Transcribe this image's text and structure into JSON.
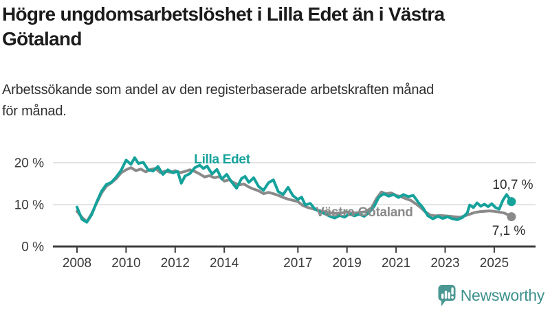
{
  "header": {
    "title_line1": "Högre ungdomsarbetslöshet i Lilla Edet än i Västra",
    "title_line2": "Götaland",
    "subtitle_line1": "Arbetssökande som andel av den registerbaserade arbetskraften månad",
    "subtitle_line2": "för månad."
  },
  "footer": {
    "brand": "Newsworthy"
  },
  "colors": {
    "teal": "#14a29b",
    "gray": "#8a8a8a",
    "logo_teal": "#4a9793",
    "grid": "#dcdcdc",
    "axis": "#3d3d3d",
    "axis_text": "#3a3a3a",
    "annotation_text": "#2a2a2a"
  },
  "chart_data": {
    "type": "line",
    "unit": "%",
    "title": "Arbetssökande som andel av den registerbaserade arbetskraften månad för månad",
    "x_axis": {
      "ticks": [
        "2008",
        "2010",
        "2012",
        "2014",
        "2017",
        "2019",
        "2021",
        "2023",
        "2025"
      ],
      "tick_values": [
        2008,
        2010,
        2012,
        2014,
        2017,
        2019,
        2021,
        2023,
        2025
      ],
      "range": [
        2008,
        2026
      ]
    },
    "y_axis": {
      "ticks": [
        {
          "value": 0,
          "label": "0 %"
        },
        {
          "value": 10,
          "label": "10 %"
        },
        {
          "value": 20,
          "label": "20 %"
        }
      ],
      "range": [
        0,
        23
      ],
      "grid": true
    },
    "series": [
      {
        "name": "Västra Götaland",
        "color": "#8a8a8a",
        "end_label": "7,1 %",
        "end_value": 7.1,
        "points": [
          [
            2008.0,
            8.4
          ],
          [
            2008.2,
            7.0
          ],
          [
            2008.4,
            5.9
          ],
          [
            2008.6,
            7.9
          ],
          [
            2008.8,
            10.4
          ],
          [
            2009.0,
            12.8
          ],
          [
            2009.2,
            14.4
          ],
          [
            2009.4,
            15.2
          ],
          [
            2009.6,
            16.2
          ],
          [
            2009.8,
            17.6
          ],
          [
            2010.0,
            18.3
          ],
          [
            2010.2,
            18.8
          ],
          [
            2010.4,
            18.1
          ],
          [
            2010.6,
            18.5
          ],
          [
            2010.8,
            17.8
          ],
          [
            2011.0,
            18.4
          ],
          [
            2011.2,
            18.6
          ],
          [
            2011.4,
            17.6
          ],
          [
            2011.6,
            18.0
          ],
          [
            2011.8,
            17.7
          ],
          [
            2012.0,
            18.1
          ],
          [
            2012.2,
            17.6
          ],
          [
            2012.4,
            17.9
          ],
          [
            2012.6,
            18.3
          ],
          [
            2012.8,
            17.9
          ],
          [
            2013.0,
            17.3
          ],
          [
            2013.2,
            16.6
          ],
          [
            2013.4,
            16.9
          ],
          [
            2013.6,
            16.4
          ],
          [
            2013.8,
            16.7
          ],
          [
            2014.0,
            15.6
          ],
          [
            2014.2,
            15.9
          ],
          [
            2014.4,
            15.2
          ],
          [
            2014.6,
            14.7
          ],
          [
            2014.8,
            14.9
          ],
          [
            2015.0,
            14.2
          ],
          [
            2015.2,
            13.7
          ],
          [
            2015.4,
            13.3
          ],
          [
            2015.6,
            12.6
          ],
          [
            2015.8,
            12.9
          ],
          [
            2016.0,
            12.6
          ],
          [
            2016.2,
            12.2
          ],
          [
            2016.4,
            11.7
          ],
          [
            2016.6,
            11.3
          ],
          [
            2016.8,
            11.0
          ],
          [
            2017.0,
            10.7
          ],
          [
            2017.2,
            9.8
          ],
          [
            2017.4,
            9.3
          ],
          [
            2017.6,
            9.0
          ],
          [
            2017.8,
            8.7
          ],
          [
            2018.0,
            8.4
          ],
          [
            2018.25,
            8.1
          ],
          [
            2018.5,
            7.9
          ],
          [
            2018.75,
            8.0
          ],
          [
            2019.0,
            8.2
          ],
          [
            2019.25,
            8.0
          ],
          [
            2019.5,
            8.1
          ],
          [
            2019.75,
            8.3
          ],
          [
            2020.0,
            9.2
          ],
          [
            2020.2,
            11.4
          ],
          [
            2020.4,
            13.0
          ],
          [
            2020.6,
            12.6
          ],
          [
            2020.8,
            12.8
          ],
          [
            2021.0,
            12.2
          ],
          [
            2021.2,
            11.9
          ],
          [
            2021.4,
            11.4
          ],
          [
            2021.6,
            11.0
          ],
          [
            2021.8,
            10.2
          ],
          [
            2022.0,
            9.3
          ],
          [
            2022.2,
            8.2
          ],
          [
            2022.4,
            7.5
          ],
          [
            2022.6,
            7.3
          ],
          [
            2022.8,
            7.4
          ],
          [
            2023.0,
            7.3
          ],
          [
            2023.2,
            7.2
          ],
          [
            2023.4,
            7.1
          ],
          [
            2023.6,
            7.0
          ],
          [
            2023.8,
            7.3
          ],
          [
            2024.0,
            7.7
          ],
          [
            2024.2,
            8.1
          ],
          [
            2024.4,
            8.3
          ],
          [
            2024.6,
            8.4
          ],
          [
            2024.8,
            8.5
          ],
          [
            2025.0,
            8.4
          ],
          [
            2025.2,
            8.2
          ],
          [
            2025.4,
            8.0
          ],
          [
            2025.55,
            7.6
          ],
          [
            2025.7,
            7.1
          ]
        ]
      },
      {
        "name": "Lilla Edet",
        "color": "#14a29b",
        "end_label": "10,7 %",
        "end_value": 10.7,
        "points": [
          [
            2008.0,
            9.4
          ],
          [
            2008.2,
            6.5
          ],
          [
            2008.4,
            5.8
          ],
          [
            2008.6,
            7.6
          ],
          [
            2008.8,
            10.6
          ],
          [
            2009.0,
            13.2
          ],
          [
            2009.2,
            14.8
          ],
          [
            2009.4,
            15.3
          ],
          [
            2009.6,
            16.6
          ],
          [
            2009.8,
            18.2
          ],
          [
            2010.0,
            20.6
          ],
          [
            2010.2,
            19.6
          ],
          [
            2010.35,
            21.2
          ],
          [
            2010.5,
            19.8
          ],
          [
            2010.7,
            20.1
          ],
          [
            2010.9,
            18.3
          ],
          [
            2011.1,
            18.0
          ],
          [
            2011.3,
            19.1
          ],
          [
            2011.5,
            17.2
          ],
          [
            2011.7,
            18.3
          ],
          [
            2011.9,
            17.6
          ],
          [
            2012.1,
            17.9
          ],
          [
            2012.25,
            15.1
          ],
          [
            2012.4,
            16.8
          ],
          [
            2012.6,
            17.4
          ],
          [
            2012.8,
            18.8
          ],
          [
            2013.0,
            19.4
          ],
          [
            2013.15,
            18.6
          ],
          [
            2013.3,
            19.2
          ],
          [
            2013.5,
            17.3
          ],
          [
            2013.7,
            18.4
          ],
          [
            2013.9,
            16.1
          ],
          [
            2014.1,
            17.2
          ],
          [
            2014.3,
            15.4
          ],
          [
            2014.5,
            13.9
          ],
          [
            2014.7,
            16.2
          ],
          [
            2014.85,
            16.7
          ],
          [
            2015.0,
            15.3
          ],
          [
            2015.2,
            16.4
          ],
          [
            2015.4,
            14.3
          ],
          [
            2015.6,
            13.4
          ],
          [
            2015.8,
            15.2
          ],
          [
            2016.0,
            15.9
          ],
          [
            2016.2,
            13.1
          ],
          [
            2016.4,
            12.4
          ],
          [
            2016.6,
            14.1
          ],
          [
            2016.8,
            12.1
          ],
          [
            2017.0,
            11.2
          ],
          [
            2017.15,
            11.8
          ],
          [
            2017.3,
            9.9
          ],
          [
            2017.5,
            10.3
          ],
          [
            2017.7,
            8.9
          ],
          [
            2017.9,
            8.3
          ],
          [
            2018.1,
            7.8
          ],
          [
            2018.3,
            7.2
          ],
          [
            2018.5,
            6.8
          ],
          [
            2018.7,
            7.4
          ],
          [
            2018.9,
            7.0
          ],
          [
            2019.1,
            7.8
          ],
          [
            2019.3,
            7.3
          ],
          [
            2019.5,
            7.7
          ],
          [
            2019.7,
            7.2
          ],
          [
            2019.9,
            8.1
          ],
          [
            2020.1,
            9.5
          ],
          [
            2020.3,
            11.8
          ],
          [
            2020.5,
            12.6
          ],
          [
            2020.7,
            12.0
          ],
          [
            2020.9,
            12.4
          ],
          [
            2021.1,
            11.7
          ],
          [
            2021.3,
            12.4
          ],
          [
            2021.5,
            11.9
          ],
          [
            2021.7,
            12.2
          ],
          [
            2021.9,
            10.6
          ],
          [
            2022.1,
            9.2
          ],
          [
            2022.3,
            7.3
          ],
          [
            2022.5,
            6.6
          ],
          [
            2022.7,
            7.2
          ],
          [
            2022.9,
            6.7
          ],
          [
            2023.1,
            7.1
          ],
          [
            2023.3,
            6.6
          ],
          [
            2023.5,
            6.4
          ],
          [
            2023.7,
            6.9
          ],
          [
            2023.9,
            8.0
          ],
          [
            2024.0,
            9.9
          ],
          [
            2024.15,
            9.3
          ],
          [
            2024.3,
            10.4
          ],
          [
            2024.45,
            9.6
          ],
          [
            2024.6,
            10.1
          ],
          [
            2024.75,
            9.5
          ],
          [
            2024.9,
            10.2
          ],
          [
            2025.05,
            9.3
          ],
          [
            2025.2,
            8.9
          ],
          [
            2025.35,
            11.0
          ],
          [
            2025.5,
            12.4
          ],
          [
            2025.6,
            11.6
          ],
          [
            2025.7,
            10.7
          ]
        ]
      }
    ],
    "legend_position": "inline-labels"
  }
}
